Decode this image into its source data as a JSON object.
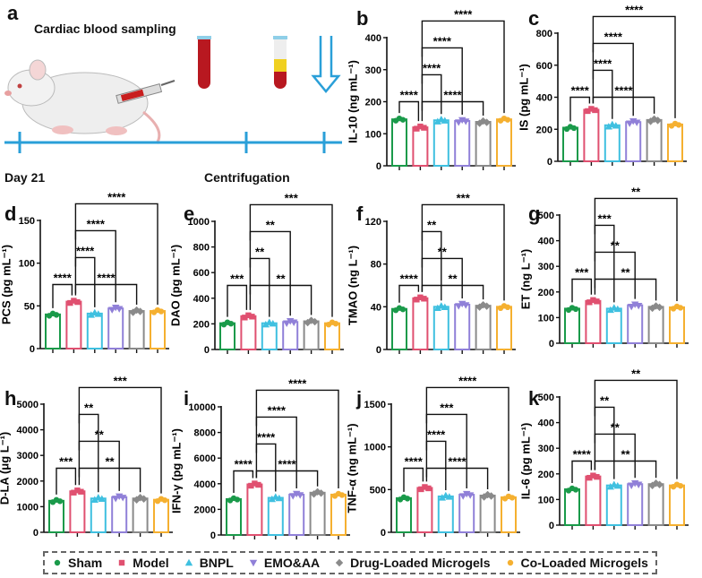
{
  "panel_a": {
    "letter": "a",
    "title": "Cardiac blood sampling",
    "timeline_start": "Day 21",
    "timeline_mid": "Centrifugation",
    "timeline_color": "#2a9fd8"
  },
  "groups": [
    {
      "name": "Sham",
      "color": "#1a9a4a",
      "marker": "circle"
    },
    {
      "name": "Model",
      "color": "#e05070",
      "marker": "square"
    },
    {
      "name": "BNPL",
      "color": "#3fc0e0",
      "marker": "triangle"
    },
    {
      "name": "EMO&AA",
      "color": "#9080d8",
      "marker": "triangle-down"
    },
    {
      "name": "Drug-Loaded Microgels",
      "color": "#8a8a8a",
      "marker": "diamond"
    },
    {
      "name": "Co-Loaded Microgels",
      "color": "#f5b030",
      "marker": "circle"
    }
  ],
  "chart_data": [
    {
      "letter": "b",
      "type": "bar",
      "ylabel": "IL-10 (ng mL⁻¹)",
      "ylim": [
        0,
        400
      ],
      "yticks": [
        "0",
        "100",
        "200",
        "300",
        "400"
      ],
      "categories": [
        "Sham",
        "Model",
        "BNPL",
        "EMO&AA",
        "Drug-Loaded Microgels",
        "Co-Loaded Microgels"
      ],
      "values": [
        145,
        120,
        142,
        140,
        137,
        145
      ],
      "brackets": [
        {
          "from": 0,
          "to": 1,
          "label": "****"
        },
        {
          "from": 1,
          "to": 4,
          "label": "****"
        },
        {
          "from": 1,
          "to": 2,
          "label": "****"
        },
        {
          "from": 1,
          "to": 3,
          "label": "****"
        },
        {
          "from": 1,
          "to": 5,
          "label": "****"
        }
      ]
    },
    {
      "letter": "c",
      "type": "bar",
      "ylabel": "IS (pg mL⁻¹)",
      "ylim": [
        0,
        800
      ],
      "yticks": [
        "0",
        "200",
        "400",
        "600",
        "800"
      ],
      "categories": [
        "Sham",
        "Model",
        "BNPL",
        "EMO&AA",
        "Drug-Loaded Microgels",
        "Co-Loaded Microgels"
      ],
      "values": [
        210,
        322,
        225,
        245,
        258,
        230
      ],
      "brackets": [
        {
          "from": 0,
          "to": 1,
          "label": "****"
        },
        {
          "from": 1,
          "to": 4,
          "label": "****"
        },
        {
          "from": 1,
          "to": 2,
          "label": "****"
        },
        {
          "from": 1,
          "to": 3,
          "label": "****"
        },
        {
          "from": 1,
          "to": 5,
          "label": "****"
        }
      ]
    },
    {
      "letter": "d",
      "type": "bar",
      "ylabel": "PCS (pg mL⁻¹)",
      "ylim": [
        0,
        150
      ],
      "yticks": [
        "0",
        "50",
        "100",
        "150"
      ],
      "categories": [
        "Sham",
        "Model",
        "BNPL",
        "EMO&AA",
        "Drug-Loaded Microgels",
        "Co-Loaded Microgels"
      ],
      "values": [
        40,
        55,
        41,
        47,
        44,
        44
      ],
      "brackets": [
        {
          "from": 0,
          "to": 1,
          "label": "****"
        },
        {
          "from": 1,
          "to": 4,
          "label": "****"
        },
        {
          "from": 1,
          "to": 2,
          "label": "****"
        },
        {
          "from": 1,
          "to": 3,
          "label": "****"
        },
        {
          "from": 1,
          "to": 5,
          "label": "****"
        }
      ]
    },
    {
      "letter": "e",
      "type": "bar",
      "ylabel": "DAO (pg mL⁻¹)",
      "ylim": [
        0,
        1000
      ],
      "yticks": [
        "0",
        "200",
        "400",
        "600",
        "800",
        "1000"
      ],
      "categories": [
        "Sham",
        "Model",
        "BNPL",
        "EMO&AA",
        "Drug-Loaded Microgels",
        "Co-Loaded Microgels"
      ],
      "values": [
        205,
        260,
        205,
        215,
        220,
        205
      ],
      "brackets": [
        {
          "from": 0,
          "to": 1,
          "label": "***"
        },
        {
          "from": 1,
          "to": 2,
          "label": "**"
        },
        {
          "from": 1,
          "to": 3,
          "label": "**"
        },
        {
          "from": 1,
          "to": 4,
          "label": "**"
        },
        {
          "from": 1,
          "to": 5,
          "label": "***"
        }
      ]
    },
    {
      "letter": "f",
      "type": "bar",
      "ylabel": "TMAO (ng L⁻¹)",
      "ylim": [
        0,
        120
      ],
      "yticks": [
        "0",
        "40",
        "80",
        "120"
      ],
      "categories": [
        "Sham",
        "Model",
        "BNPL",
        "EMO&AA",
        "Drug-Loaded Microgels",
        "Co-Loaded Microgels"
      ],
      "values": [
        38,
        48,
        40,
        42,
        41,
        40
      ],
      "brackets": [
        {
          "from": 0,
          "to": 1,
          "label": "****"
        },
        {
          "from": 1,
          "to": 3,
          "label": "**"
        },
        {
          "from": 1,
          "to": 2,
          "label": "**"
        },
        {
          "from": 1,
          "to": 4,
          "label": "**"
        },
        {
          "from": 1,
          "to": 5,
          "label": "***"
        }
      ]
    },
    {
      "letter": "g",
      "type": "bar",
      "ylabel": "ET (ng L⁻¹)",
      "ylim": [
        0,
        500
      ],
      "yticks": [
        "0",
        "100",
        "200",
        "300",
        "400",
        "500"
      ],
      "categories": [
        "Sham",
        "Model",
        "BNPL",
        "EMO&AA",
        "Drug-Loaded Microgels",
        "Co-Loaded Microgels"
      ],
      "values": [
        135,
        165,
        135,
        148,
        142,
        140
      ],
      "brackets": [
        {
          "from": 0,
          "to": 1,
          "label": "***"
        },
        {
          "from": 1,
          "to": 3,
          "label": "**"
        },
        {
          "from": 1,
          "to": 2,
          "label": "***"
        },
        {
          "from": 1,
          "to": 4,
          "label": "**"
        },
        {
          "from": 1,
          "to": 5,
          "label": "**"
        }
      ]
    },
    {
      "letter": "h",
      "type": "bar",
      "ylabel": "D-LA (μg L⁻¹)",
      "ylim": [
        0,
        5000
      ],
      "yticks": [
        "0",
        "1000",
        "2000",
        "3000",
        "4000",
        "5000"
      ],
      "categories": [
        "Sham",
        "Model",
        "BNPL",
        "EMO&AA",
        "Drug-Loaded Microgels",
        "Co-Loaded Microgels"
      ],
      "values": [
        1230,
        1600,
        1320,
        1370,
        1320,
        1270
      ],
      "brackets": [
        {
          "from": 0,
          "to": 1,
          "label": "***"
        },
        {
          "from": 1,
          "to": 3,
          "label": "**"
        },
        {
          "from": 1,
          "to": 2,
          "label": "**"
        },
        {
          "from": 1,
          "to": 4,
          "label": "**"
        },
        {
          "from": 1,
          "to": 5,
          "label": "***"
        }
      ]
    },
    {
      "letter": "i",
      "type": "bar",
      "ylabel": "IFN-γ (pg mL⁻¹)",
      "ylim": [
        0,
        10000
      ],
      "yticks": [
        "0",
        "2000",
        "4000",
        "6000",
        "8000",
        "10000"
      ],
      "categories": [
        "Sham",
        "Model",
        "BNPL",
        "EMO&AA",
        "Drug-Loaded Microgels",
        "Co-Loaded Microgels"
      ],
      "values": [
        2800,
        3950,
        2900,
        3150,
        3300,
        3150
      ],
      "brackets": [
        {
          "from": 0,
          "to": 1,
          "label": "****"
        },
        {
          "from": 1,
          "to": 4,
          "label": "****"
        },
        {
          "from": 1,
          "to": 2,
          "label": "****"
        },
        {
          "from": 1,
          "to": 3,
          "label": "****"
        },
        {
          "from": 1,
          "to": 5,
          "label": "****"
        }
      ]
    },
    {
      "letter": "j",
      "type": "bar",
      "ylabel": "TNF-α (ng mL⁻¹)",
      "ylim": [
        0,
        1500
      ],
      "yticks": [
        "0",
        "500",
        "1000",
        "1500"
      ],
      "categories": [
        "Sham",
        "Model",
        "BNPL",
        "EMO&AA",
        "Drug-Loaded Microgels",
        "Co-Loaded Microgels"
      ],
      "values": [
        400,
        520,
        420,
        440,
        430,
        410
      ],
      "brackets": [
        {
          "from": 0,
          "to": 1,
          "label": "****"
        },
        {
          "from": 1,
          "to": 4,
          "label": "****"
        },
        {
          "from": 1,
          "to": 2,
          "label": "****"
        },
        {
          "from": 1,
          "to": 3,
          "label": "***"
        },
        {
          "from": 1,
          "to": 5,
          "label": "****"
        }
      ]
    },
    {
      "letter": "k",
      "type": "bar",
      "ylabel": "IL-6 (pg mL⁻¹)",
      "ylim": [
        0,
        500
      ],
      "yticks": [
        "0",
        "100",
        "200",
        "300",
        "400",
        "500"
      ],
      "categories": [
        "Sham",
        "Model",
        "BNPL",
        "EMO&AA",
        "Drug-Loaded Microgels",
        "Co-Loaded Microgels"
      ],
      "values": [
        140,
        190,
        155,
        160,
        160,
        155
      ],
      "brackets": [
        {
          "from": 0,
          "to": 1,
          "label": "****"
        },
        {
          "from": 1,
          "to": 3,
          "label": "**"
        },
        {
          "from": 1,
          "to": 2,
          "label": "**"
        },
        {
          "from": 1,
          "to": 4,
          "label": "**"
        },
        {
          "from": 1,
          "to": 5,
          "label": "**"
        }
      ]
    }
  ]
}
